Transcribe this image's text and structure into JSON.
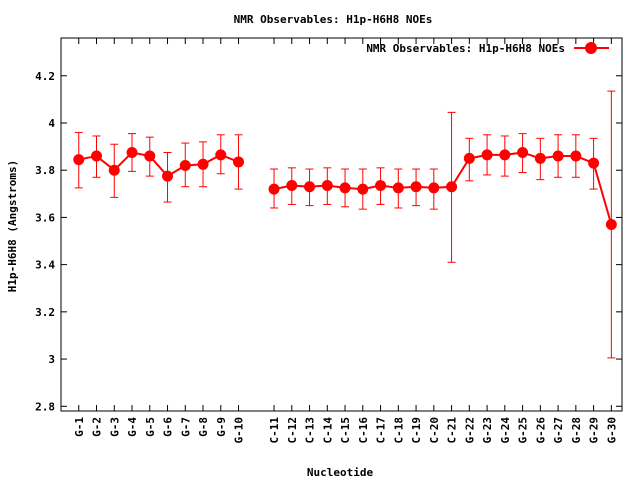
{
  "chart_data": {
    "type": "line",
    "title": "NMR Observables: H1p-H6H8 NOEs",
    "xlabel": "Nucleotide",
    "ylabel": "H1p-H6H8 (Angstroms)",
    "ylim": [
      2.78,
      4.36
    ],
    "yticks": [
      2.8,
      3,
      3.2,
      3.4,
      3.6,
      3.8,
      4,
      4.2
    ],
    "ytick_labels": [
      "2.8",
      "3",
      "3.2",
      "3.4",
      "3.6",
      "3.8",
      "4",
      "4.2"
    ],
    "grid": false,
    "legend_position": "top-right",
    "series": [
      {
        "name": "NMR Observables: H1p-H6H8 NOEs",
        "color": "#ff0000",
        "segments": [
          {
            "categories": [
              "G-1",
              "G-2",
              "G-3",
              "G-4",
              "G-5",
              "G-6",
              "G-7",
              "G-8",
              "G-9",
              "G-10"
            ],
            "index": [
              1,
              2,
              3,
              4,
              5,
              6,
              7,
              8,
              9,
              10
            ],
            "values": [
              3.845,
              3.86,
              3.8,
              3.875,
              3.86,
              3.775,
              3.82,
              3.825,
              3.865,
              3.835
            ],
            "err_low": [
              3.725,
              3.77,
              3.685,
              3.795,
              3.775,
              3.665,
              3.73,
              3.73,
              3.785,
              3.72
            ],
            "err_high": [
              3.96,
              3.945,
              3.91,
              3.955,
              3.94,
              3.875,
              3.915,
              3.92,
              3.95,
              3.95
            ]
          },
          {
            "categories": [
              "C-11",
              "C-12",
              "C-13",
              "C-14",
              "C-15",
              "C-16",
              "C-17",
              "C-18",
              "C-19",
              "C-20",
              "C-21",
              "G-22",
              "G-23",
              "G-24",
              "G-25",
              "G-26",
              "G-27",
              "G-28",
              "G-29",
              "G-30"
            ],
            "index": [
              12,
              13,
              14,
              15,
              16,
              17,
              18,
              19,
              20,
              21,
              22,
              23,
              24,
              25,
              26,
              27,
              28,
              29,
              30,
              31
            ],
            "values": [
              3.72,
              3.735,
              3.73,
              3.735,
              3.725,
              3.72,
              3.735,
              3.725,
              3.73,
              3.725,
              3.73,
              3.85,
              3.865,
              3.865,
              3.875,
              3.85,
              3.86,
              3.86,
              3.83,
              3.57
            ],
            "err_low": [
              3.64,
              3.655,
              3.65,
              3.655,
              3.645,
              3.635,
              3.655,
              3.64,
              3.65,
              3.635,
              3.41,
              3.755,
              3.78,
              3.775,
              3.79,
              3.76,
              3.77,
              3.77,
              3.72,
              3.005
            ],
            "err_high": [
              3.805,
              3.81,
              3.805,
              3.81,
              3.805,
              3.805,
              3.81,
              3.805,
              3.805,
              3.805,
              4.045,
              3.935,
              3.95,
              3.945,
              3.955,
              3.935,
              3.95,
              3.95,
              3.935,
              4.135
            ]
          }
        ]
      }
    ]
  }
}
